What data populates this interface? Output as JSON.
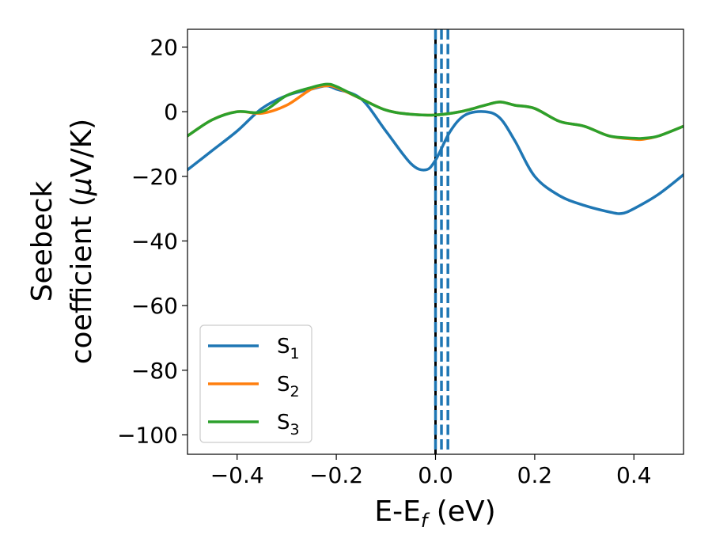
{
  "chart_data": {
    "type": "line",
    "xlabel": {
      "base": "E-E",
      "sub": "f",
      "tail": " (eV)"
    },
    "ylabel": {
      "line1": "Seebeck",
      "line2_pre": "coefficient  (",
      "mu": "μ",
      "line2_post": "V/K)"
    },
    "xlim": [
      -0.5,
      0.5
    ],
    "ylim": [
      -106,
      25.5
    ],
    "xticks": [
      -0.4,
      -0.2,
      0.0,
      0.2,
      0.4
    ],
    "xtick_labels": [
      "−0.4",
      "−0.2",
      "0.0",
      "0.2",
      "0.4"
    ],
    "yticks": [
      20,
      0,
      -20,
      -40,
      -60,
      -80,
      -100
    ],
    "ytick_labels": [
      "20",
      "0",
      "−20",
      "−40",
      "−60",
      "−80",
      "−100"
    ],
    "legend_position": "lower-left",
    "series": [
      {
        "name": "S",
        "sub": "1",
        "color": "#1f77b4",
        "x": [
          -0.5,
          -0.45,
          -0.4,
          -0.35,
          -0.3,
          -0.25,
          -0.22,
          -0.2,
          -0.15,
          -0.1,
          -0.05,
          -0.02,
          0.0,
          0.03,
          0.06,
          0.1,
          0.13,
          0.16,
          0.2,
          0.25,
          0.3,
          0.35,
          0.375,
          0.4,
          0.45,
          0.5
        ],
        "y": [
          -18,
          -12,
          -6,
          1,
          5,
          7,
          8,
          7,
          4,
          -6,
          -16,
          -18,
          -15,
          -6,
          -1,
          0,
          -2,
          -9,
          -20,
          -26,
          -29,
          -31,
          -31.5,
          -30,
          -25.5,
          -19.5
        ]
      },
      {
        "name": "S",
        "sub": "2",
        "color": "#ff7f0e",
        "x": [
          -0.5,
          -0.45,
          -0.4,
          -0.35,
          -0.3,
          -0.25,
          -0.22,
          -0.2,
          -0.15,
          -0.1,
          -0.05,
          0.0,
          0.05,
          0.1,
          0.13,
          0.16,
          0.2,
          0.25,
          0.3,
          0.35,
          0.4,
          0.42,
          0.45,
          0.5
        ],
        "y": [
          -7.5,
          -2.5,
          0,
          -0.5,
          2,
          7,
          8,
          7.5,
          4,
          0.5,
          -0.8,
          -1,
          0,
          2,
          3,
          2,
          1,
          -3,
          -4.5,
          -7.5,
          -8.5,
          -8.5,
          -7.5,
          -4.5
        ]
      },
      {
        "name": "S",
        "sub": "3",
        "color": "#2ca02c",
        "x": [
          -0.5,
          -0.45,
          -0.4,
          -0.35,
          -0.3,
          -0.25,
          -0.22,
          -0.2,
          -0.15,
          -0.1,
          -0.05,
          0.0,
          0.05,
          0.1,
          0.13,
          0.16,
          0.2,
          0.25,
          0.3,
          0.35,
          0.4,
          0.42,
          0.45,
          0.5
        ],
        "y": [
          -7.5,
          -2.5,
          0,
          0,
          5,
          7.5,
          8.5,
          7.8,
          4,
          0.5,
          -0.8,
          -1,
          0,
          2,
          3,
          2,
          1,
          -3,
          -4.5,
          -7.5,
          -8.2,
          -8.2,
          -7.5,
          -4.5
        ]
      }
    ],
    "vlines": [
      {
        "x": 0.0,
        "color": "#000000",
        "style": "solid"
      },
      {
        "x": 0.0,
        "color": "#1f77b4",
        "style": "dashed"
      },
      {
        "x": 0.012,
        "color": "#1f77b4",
        "style": "dashed"
      },
      {
        "x": 0.025,
        "color": "#1f77b4",
        "style": "dashed"
      }
    ]
  }
}
